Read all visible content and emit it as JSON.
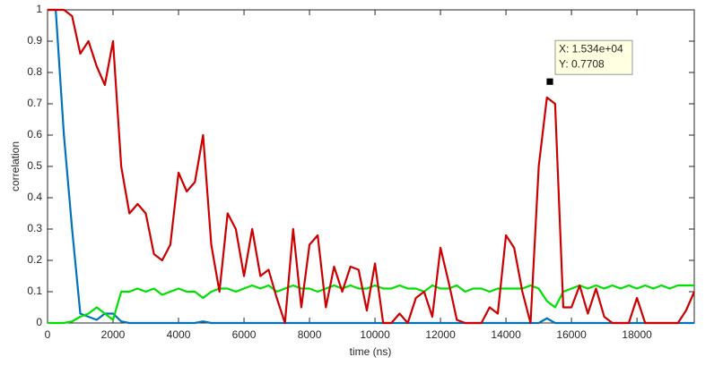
{
  "chart_data": {
    "type": "line",
    "xlabel": "time (ns)",
    "ylabel": "correlation",
    "xlim": [
      0,
      19750
    ],
    "ylim": [
      0,
      1
    ],
    "xticks": [
      0,
      2000,
      4000,
      6000,
      8000,
      10000,
      12000,
      14000,
      16000,
      18000
    ],
    "yticks": [
      0,
      0.1,
      0.2,
      0.3,
      0.4,
      0.5,
      0.6,
      0.7,
      0.8,
      0.9,
      1
    ],
    "x": [
      0,
      250,
      500,
      750,
      1000,
      1250,
      1500,
      1750,
      2000,
      2250,
      2500,
      2750,
      3000,
      3250,
      3500,
      3750,
      4000,
      4250,
      4500,
      4750,
      5000,
      5250,
      5500,
      5750,
      6000,
      6250,
      6500,
      6750,
      7000,
      7250,
      7500,
      7750,
      8000,
      8250,
      8500,
      8750,
      9000,
      9250,
      9500,
      9750,
      10000,
      10250,
      10500,
      10750,
      11000,
      11250,
      11500,
      11750,
      12000,
      12250,
      12500,
      12750,
      13000,
      13250,
      13500,
      13750,
      14000,
      14250,
      14500,
      14750,
      15000,
      15250,
      15500,
      15750,
      16000,
      16250,
      16500,
      16750,
      17000,
      17250,
      17500,
      17750,
      18000,
      18250,
      18500,
      18750,
      19000,
      19250,
      19500,
      19750
    ],
    "series": [
      {
        "color": "#0072bd",
        "values": [
          1,
          1,
          0.6,
          0.3,
          0.03,
          0.02,
          0.01,
          0.03,
          0.03,
          0.005,
          0,
          0,
          0,
          0,
          0,
          0,
          0,
          0,
          0,
          0.005,
          0,
          0,
          0,
          0,
          0,
          0,
          0,
          0,
          0,
          0,
          0,
          0,
          0,
          0,
          0,
          0,
          0,
          0,
          0,
          0,
          0,
          0,
          0,
          0,
          0,
          0,
          0,
          0,
          0,
          0,
          0,
          0,
          0,
          0,
          0,
          0,
          0,
          0,
          0,
          0,
          0,
          0.015,
          0,
          0,
          0,
          0,
          0,
          0,
          0,
          0,
          0,
          0,
          0,
          0,
          0,
          0,
          0,
          0,
          0,
          0
        ]
      },
      {
        "color": "#00e000",
        "values": [
          0,
          0,
          0,
          0.005,
          0.02,
          0.03,
          0.05,
          0.03,
          0.01,
          0.1,
          0.1,
          0.11,
          0.1,
          0.11,
          0.09,
          0.1,
          0.11,
          0.1,
          0.1,
          0.08,
          0.1,
          0.11,
          0.11,
          0.1,
          0.11,
          0.12,
          0.11,
          0.12,
          0.1,
          0.11,
          0.12,
          0.11,
          0.11,
          0.1,
          0.11,
          0.12,
          0.11,
          0.12,
          0.11,
          0.11,
          0.12,
          0.11,
          0.11,
          0.12,
          0.11,
          0.11,
          0.1,
          0.12,
          0.11,
          0.11,
          0.12,
          0.1,
          0.11,
          0.11,
          0.1,
          0.11,
          0.11,
          0.11,
          0.11,
          0.12,
          0.11,
          0.07,
          0.05,
          0.1,
          0.11,
          0.12,
          0.11,
          0.12,
          0.11,
          0.12,
          0.11,
          0.12,
          0.11,
          0.12,
          0.11,
          0.12,
          0.11,
          0.12,
          0.12,
          0.12
        ]
      },
      {
        "color": "#cc0000",
        "values": [
          1,
          1,
          1,
          0.98,
          0.86,
          0.9,
          0.82,
          0.76,
          0.9,
          0.5,
          0.35,
          0.38,
          0.35,
          0.22,
          0.2,
          0.25,
          0.48,
          0.42,
          0.45,
          0.6,
          0.25,
          0.1,
          0.35,
          0.3,
          0.15,
          0.3,
          0.15,
          0.17,
          0.08,
          0,
          0.3,
          0.05,
          0.25,
          0.28,
          0.05,
          0.18,
          0.1,
          0.18,
          0.17,
          0.04,
          0.19,
          0,
          0,
          0.03,
          0,
          0.08,
          0.1,
          0.02,
          0.24,
          0.13,
          0.01,
          0,
          0,
          0,
          0.05,
          0.03,
          0.28,
          0.24,
          0.1,
          0,
          0.5,
          0.72,
          0.7,
          0.05,
          0.05,
          0.12,
          0.03,
          0.11,
          0.02,
          0,
          0,
          0,
          0.08,
          0,
          0,
          0,
          0,
          0,
          0.04,
          0.1
        ]
      }
    ],
    "annotations": [
      {
        "x": 15340,
        "y": 0.7708,
        "label_x": "X: 1.534e+04",
        "label_y": "Y: 0.7708"
      }
    ]
  }
}
